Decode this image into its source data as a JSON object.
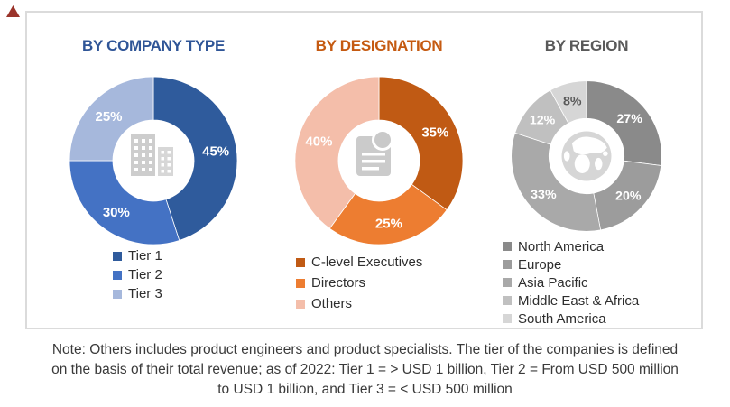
{
  "figure": {
    "corner_marker_color": "#9a342b"
  },
  "chart_data": [
    {
      "type": "pie",
      "subtype": "donut",
      "title": "BY COMPANY TYPE",
      "title_color": "#2F5597",
      "center_icon": "buildings-icon",
      "legend_position": "bottom",
      "categories": [
        "Tier 1",
        "Tier 2",
        "Tier 3"
      ],
      "values": [
        45,
        30,
        25
      ],
      "slices": [
        {
          "label": "Tier 1",
          "value": 45,
          "color": "#2F5B9C",
          "label_color": "#FFFFFF"
        },
        {
          "label": "Tier 2",
          "value": 30,
          "color": "#4472C4",
          "label_color": "#FFFFFF"
        },
        {
          "label": "Tier 3",
          "value": 25,
          "color": "#A6B8DC",
          "label_color": "#FFFFFF"
        }
      ]
    },
    {
      "type": "pie",
      "subtype": "donut",
      "title": "BY DESIGNATION",
      "title_color": "#C55A11",
      "center_icon": "document-icon",
      "legend_position": "bottom",
      "categories": [
        "C-level Executives",
        "Directors",
        "Others"
      ],
      "values": [
        35,
        25,
        40
      ],
      "slices": [
        {
          "label": "C-level Executives",
          "value": 35,
          "color": "#C05A14",
          "label_color": "#FFFFFF"
        },
        {
          "label": "Directors",
          "value": 25,
          "color": "#ED7D31",
          "label_color": "#FFFFFF"
        },
        {
          "label": "Others",
          "value": 40,
          "color": "#F4BEAA",
          "label_color": "#FFFFFF"
        }
      ]
    },
    {
      "type": "pie",
      "subtype": "donut",
      "title": "BY REGION",
      "title_color": "#595959",
      "center_icon": "globe-icon",
      "legend_position": "bottom",
      "categories": [
        "North America",
        "Europe",
        "Asia Pacific",
        "Middle East & Africa",
        "South America"
      ],
      "values": [
        27,
        20,
        33,
        12,
        8
      ],
      "slices": [
        {
          "label": "North America",
          "value": 27,
          "color": "#8A8A8A",
          "label_color": "#FFFFFF"
        },
        {
          "label": "Europe",
          "value": 20,
          "color": "#9C9C9C",
          "label_color": "#FFFFFF"
        },
        {
          "label": "Asia Pacific",
          "value": 33,
          "color": "#A9A9A9",
          "label_color": "#FFFFFF"
        },
        {
          "label": "Middle East & Africa",
          "value": 12,
          "color": "#C0C0C0",
          "label_color": "#FFFFFF"
        },
        {
          "label": "South America",
          "value": 8,
          "color": "#D6D6D6",
          "label_color": "#595959"
        }
      ]
    }
  ],
  "note": {
    "lines": [
      "Note: Others includes product engineers and product specialists. The tier of the companies is defined",
      "on the basis of their total revenue; as of 2022: Tier 1 = > USD 1 billion, Tier 2 = From USD 500 million",
      "to USD 1 billion, and Tier 3 = < USD 500 million"
    ]
  }
}
